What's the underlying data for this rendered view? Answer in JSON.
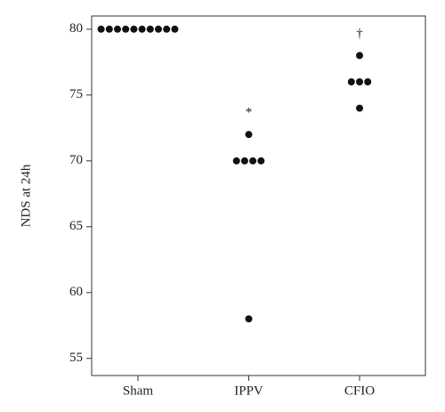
{
  "chart_data": {
    "type": "dotplot",
    "y_label": "NDS at 24h",
    "categories": [
      "Sham",
      "IPPV",
      "CFIO"
    ],
    "values": [
      [
        80,
        80,
        80,
        80,
        80,
        80,
        80,
        80,
        80,
        80
      ],
      [
        72,
        70,
        70,
        70,
        70,
        58
      ],
      [
        78,
        76,
        76,
        76,
        74
      ]
    ],
    "annotations": [
      {
        "text": "*",
        "category": "IPPV"
      },
      {
        "text": "†",
        "category": "CFIO"
      }
    ],
    "color": "#111111",
    "ylim": [
      53.7,
      81
    ],
    "yticks": [
      55,
      60,
      65,
      70,
      75,
      80
    ]
  }
}
